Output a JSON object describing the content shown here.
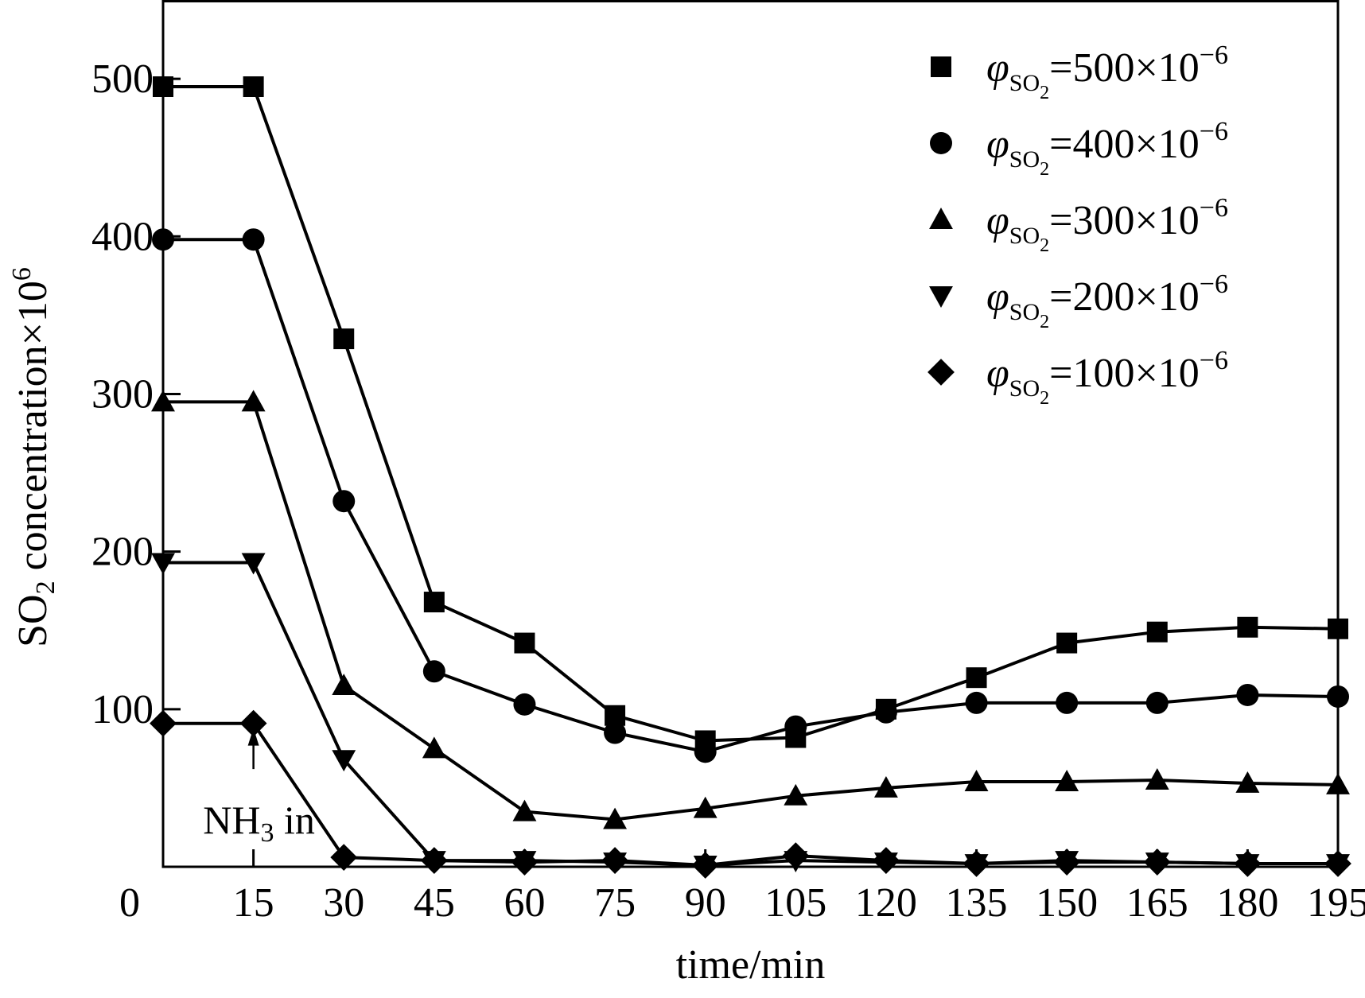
{
  "chart_data": {
    "type": "line",
    "xlabel": "time/min",
    "ylabel": {
      "prefix": "SO",
      "sub": "2",
      "middle": " concentration×10",
      "sup": "6"
    },
    "xlim": [
      0,
      195
    ],
    "ylim": [
      0,
      550
    ],
    "x_ticks": [
      0,
      15,
      30,
      45,
      60,
      75,
      90,
      105,
      120,
      135,
      150,
      165,
      180,
      195
    ],
    "x_tick_labels": [
      "0",
      "15",
      "30",
      "45",
      "60",
      "75",
      "90",
      "105",
      "120",
      "135",
      "150",
      "165",
      "180",
      "195"
    ],
    "y_ticks": [
      100,
      200,
      300,
      400,
      500
    ],
    "y_tick_labels": [
      "100",
      "200",
      "300",
      "400",
      "500"
    ],
    "grid": false,
    "legend_position": "top-right",
    "x": [
      0,
      15,
      30,
      45,
      60,
      75,
      90,
      105,
      120,
      135,
      150,
      165,
      180,
      195
    ],
    "series": [
      {
        "legend": {
          "phi": "φ",
          "sub": "SO",
          "sub2": "2",
          "eq": "=500×10",
          "sup": "−6"
        },
        "marker": "square",
        "values": [
          495,
          495,
          335,
          168,
          142,
          96,
          80,
          82,
          100,
          120,
          142,
          149,
          152,
          151
        ]
      },
      {
        "legend": {
          "phi": "φ",
          "sub": "SO",
          "sub2": "2",
          "eq": "=400×10",
          "sup": "−6"
        },
        "marker": "circle",
        "values": [
          398,
          398,
          232,
          124,
          103,
          85,
          73,
          89,
          98,
          104,
          104,
          104,
          109,
          108
        ]
      },
      {
        "legend": {
          "phi": "φ",
          "sub": "SO",
          "sub2": "2",
          "eq": "=300×10",
          "sup": "−6"
        },
        "marker": "triangle-up",
        "values": [
          295,
          295,
          115,
          75,
          35,
          30,
          37,
          45,
          50,
          54,
          54,
          55,
          53,
          52
        ]
      },
      {
        "legend": {
          "phi": "φ",
          "sub": "SO",
          "sub2": "2",
          "eq": "=200×10",
          "sup": "−6"
        },
        "marker": "triangle-down",
        "values": [
          193,
          193,
          68,
          4,
          4,
          3,
          1,
          4,
          3,
          2,
          4,
          3,
          2,
          2
        ]
      },
      {
        "legend": {
          "phi": "φ",
          "sub": "SO",
          "sub2": "2",
          "eq": "=100×10",
          "sup": "−6"
        },
        "marker": "diamond",
        "values": [
          91,
          91,
          6,
          4,
          3,
          4,
          1,
          7,
          4,
          2,
          3,
          3,
          2,
          2
        ]
      }
    ],
    "annotations": [
      {
        "x": 15,
        "y_from": 62,
        "y_to": 88,
        "text": {
          "main": "NH",
          "sub": "3",
          "rest": " in"
        }
      }
    ]
  }
}
